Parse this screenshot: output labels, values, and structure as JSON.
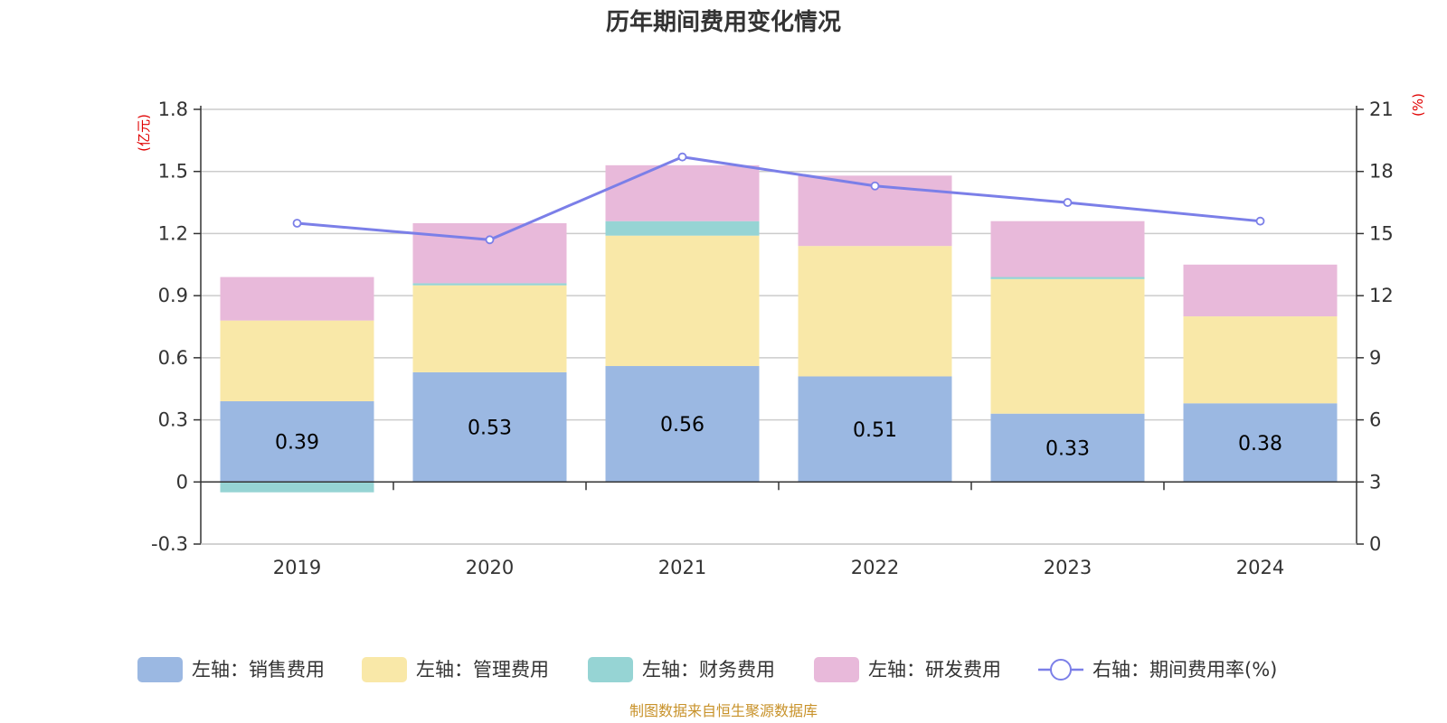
{
  "chart_data": {
    "type": "bar",
    "stacked": true,
    "title": "历年期间费用变化情况",
    "categories": [
      "2019",
      "2020",
      "2021",
      "2022",
      "2023",
      "2024"
    ],
    "left_axis": {
      "unit": "(亿元)",
      "ylim": [
        -0.3,
        1.8
      ],
      "ticks": [
        -0.3,
        0,
        0.3,
        0.6,
        0.9,
        1.2,
        1.5,
        1.8
      ],
      "tick_labels": [
        "-0.3",
        "0",
        "0.3",
        "0.6",
        "0.9",
        "1.2",
        "1.5",
        "1.8"
      ]
    },
    "right_axis": {
      "unit": "(%)",
      "ylim": [
        0,
        21
      ],
      "ticks": [
        0,
        3,
        6,
        9,
        12,
        15,
        18,
        21
      ],
      "tick_labels": [
        "0",
        "3",
        "6",
        "9",
        "12",
        "15",
        "18",
        "21"
      ]
    },
    "series": [
      {
        "name": "左轴：销售费用",
        "axis": "left",
        "type": "bar",
        "color": "#9bb8e2",
        "values": [
          0.39,
          0.53,
          0.56,
          0.51,
          0.33,
          0.38
        ],
        "labels": [
          "0.39",
          "0.53",
          "0.56",
          "0.51",
          "0.33",
          "0.38"
        ]
      },
      {
        "name": "左轴：管理费用",
        "axis": "left",
        "type": "bar",
        "color": "#f9e8a8",
        "values": [
          0.39,
          0.42,
          0.63,
          0.63,
          0.65,
          0.42
        ]
      },
      {
        "name": "左轴：财务费用",
        "axis": "left",
        "type": "bar",
        "color": "#96d4d4",
        "values": [
          -0.05,
          0.01,
          0.07,
          0.0,
          0.01,
          0.0
        ]
      },
      {
        "name": "左轴：研发费用",
        "axis": "left",
        "type": "bar",
        "color": "#e8b9da",
        "values": [
          0.21,
          0.29,
          0.27,
          0.34,
          0.27,
          0.25
        ]
      },
      {
        "name": "右轴：期间费用率(%)",
        "axis": "right",
        "type": "line",
        "color": "#7b7fe8",
        "values": [
          15.5,
          14.7,
          18.7,
          17.3,
          16.5,
          15.6
        ]
      }
    ],
    "grid": true,
    "legend": "bottom"
  },
  "footer": {
    "source": "制图数据来自恒生聚源数据库"
  }
}
